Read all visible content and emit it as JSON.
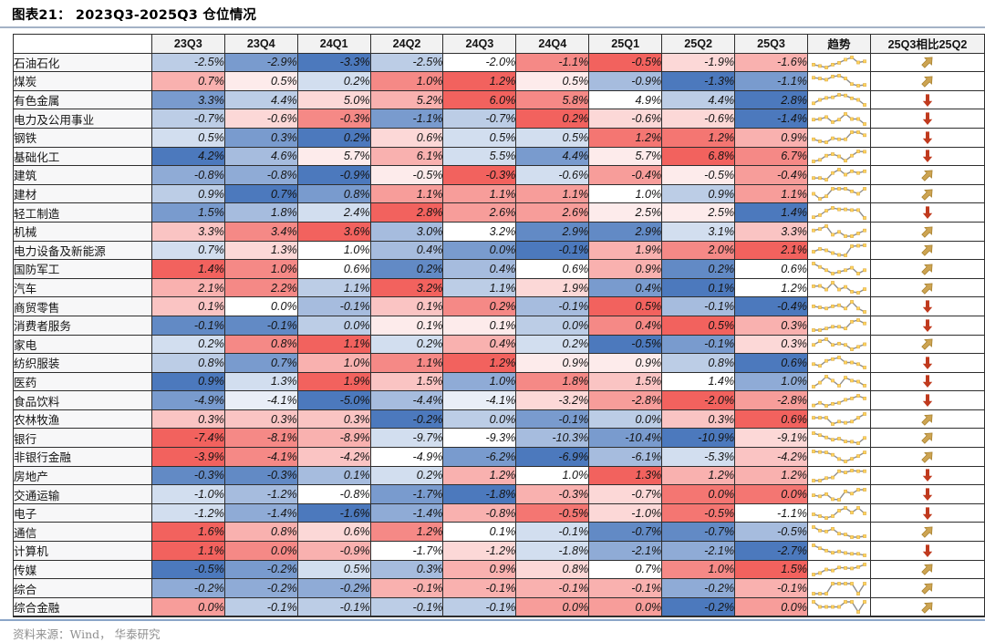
{
  "title": "图表21：  2023Q3-2025Q3 仓位情况",
  "source_note": "资料来源：Wind， 华泰研究",
  "chart_data": {
    "type": "heatmap",
    "unit": "%",
    "value_format": "one_decimal_percent",
    "color_scale": "row-wise percentile, blue (row min) → white (median) → red (row max)",
    "columns": [
      "23Q3",
      "23Q4",
      "24Q1",
      "24Q2",
      "24Q3",
      "24Q4",
      "25Q1",
      "25Q2",
      "25Q3"
    ],
    "trend_column_label": "趋势",
    "compare_column_label": "25Q3相比25Q2",
    "rows": [
      {
        "name": "石油石化",
        "values": [
          -2.5,
          -2.9,
          -3.3,
          -2.5,
          -2.0,
          -1.1,
          -0.5,
          -1.9,
          -1.6
        ],
        "change": "up"
      },
      {
        "name": "煤炭",
        "values": [
          0.7,
          0.5,
          0.2,
          1.0,
          1.2,
          0.5,
          -0.9,
          -1.3,
          -1.1
        ],
        "change": "up"
      },
      {
        "name": "有色金属",
        "values": [
          3.3,
          4.4,
          5.0,
          5.2,
          6.0,
          5.8,
          4.9,
          4.4,
          2.8
        ],
        "change": "down"
      },
      {
        "name": "电力及公用事业",
        "values": [
          -0.7,
          -0.6,
          -0.3,
          -1.1,
          -0.7,
          0.2,
          -0.6,
          -0.6,
          -1.4
        ],
        "change": "down"
      },
      {
        "name": "钢铁",
        "values": [
          0.5,
          0.3,
          0.2,
          0.6,
          0.5,
          0.5,
          1.2,
          1.2,
          0.9
        ],
        "change": "down"
      },
      {
        "name": "基础化工",
        "values": [
          4.2,
          4.6,
          5.7,
          6.1,
          5.5,
          4.4,
          5.7,
          6.8,
          6.7
        ],
        "change": "down"
      },
      {
        "name": "建筑",
        "values": [
          -0.8,
          -0.8,
          -0.9,
          -0.5,
          -0.3,
          -0.6,
          -0.4,
          -0.5,
          -0.4
        ],
        "change": "up"
      },
      {
        "name": "建材",
        "values": [
          0.9,
          0.7,
          0.8,
          1.1,
          1.1,
          1.1,
          1.0,
          0.9,
          1.1
        ],
        "change": "up"
      },
      {
        "name": "轻工制造",
        "values": [
          1.5,
          1.8,
          2.4,
          2.8,
          2.6,
          2.6,
          2.5,
          2.5,
          1.4
        ],
        "change": "down"
      },
      {
        "name": "机械",
        "values": [
          3.3,
          3.4,
          3.6,
          3.0,
          3.2,
          2.9,
          2.9,
          3.1,
          3.3
        ],
        "change": "up"
      },
      {
        "name": "电力设备及新能源",
        "values": [
          0.7,
          1.3,
          1.0,
          0.4,
          0.0,
          -0.1,
          1.9,
          2.0,
          2.1
        ],
        "change": "up"
      },
      {
        "name": "国防军工",
        "values": [
          1.4,
          1.0,
          0.6,
          0.2,
          0.4,
          0.6,
          0.9,
          0.2,
          0.6
        ],
        "change": "up"
      },
      {
        "name": "汽车",
        "values": [
          2.1,
          2.2,
          1.1,
          3.2,
          1.1,
          1.9,
          0.4,
          0.1,
          1.2
        ],
        "change": "up"
      },
      {
        "name": "商贸零售",
        "values": [
          0.1,
          0.0,
          -0.1,
          0.1,
          0.2,
          -0.1,
          0.5,
          -0.1,
          -0.4
        ],
        "change": "down"
      },
      {
        "name": "消费者服务",
        "values": [
          -0.1,
          -0.1,
          0.0,
          0.1,
          0.1,
          0.0,
          0.4,
          0.5,
          0.3
        ],
        "change": "down"
      },
      {
        "name": "家电",
        "values": [
          0.2,
          0.8,
          1.1,
          0.2,
          0.4,
          0.2,
          -0.5,
          -0.1,
          0.3
        ],
        "change": "up"
      },
      {
        "name": "纺织服装",
        "values": [
          0.8,
          0.7,
          1.0,
          1.1,
          1.2,
          0.9,
          0.9,
          0.8,
          0.6
        ],
        "change": "down"
      },
      {
        "name": "医药",
        "values": [
          0.9,
          1.3,
          1.9,
          1.5,
          1.0,
          1.8,
          1.5,
          1.4,
          1.0
        ],
        "change": "down"
      },
      {
        "name": "食品饮料",
        "values": [
          -4.9,
          -4.1,
          -5.0,
          -4.4,
          -4.1,
          -3.2,
          -2.8,
          -2.0,
          -2.8
        ],
        "change": "down"
      },
      {
        "name": "农林牧渔",
        "values": [
          0.3,
          0.3,
          0.3,
          -0.2,
          0.0,
          -0.1,
          0.0,
          0.3,
          0.6
        ],
        "change": "up"
      },
      {
        "name": "银行",
        "values": [
          -7.4,
          -8.1,
          -8.9,
          -9.7,
          -9.3,
          -10.3,
          -10.4,
          -10.9,
          -9.1
        ],
        "change": "up"
      },
      {
        "name": "非银行金融",
        "values": [
          -3.9,
          -4.1,
          -4.2,
          -4.9,
          -6.2,
          -6.9,
          -6.1,
          -5.3,
          -4.2
        ],
        "change": "up"
      },
      {
        "name": "房地产",
        "values": [
          -0.3,
          -0.3,
          0.1,
          0.2,
          1.2,
          1.0,
          1.3,
          1.2,
          1.2
        ],
        "change": "down"
      },
      {
        "name": "交通运输",
        "values": [
          -1.0,
          -1.2,
          -0.8,
          -1.7,
          -1.8,
          -0.3,
          -0.7,
          0.0,
          0.0
        ],
        "change": "down"
      },
      {
        "name": "电子",
        "values": [
          -1.2,
          -1.4,
          -1.6,
          -1.4,
          -0.8,
          -0.5,
          -1.0,
          -0.5,
          -1.1
        ],
        "change": "down"
      },
      {
        "name": "通信",
        "values": [
          1.6,
          0.8,
          0.6,
          1.2,
          0.1,
          -0.1,
          -0.7,
          -0.7,
          -0.5
        ],
        "change": "up"
      },
      {
        "name": "计算机",
        "values": [
          1.1,
          0.0,
          -0.9,
          -1.7,
          -1.2,
          -1.8,
          -2.1,
          -2.1,
          -2.7
        ],
        "change": "down"
      },
      {
        "name": "传媒",
        "values": [
          -0.5,
          -0.2,
          0.5,
          0.3,
          0.9,
          0.8,
          0.7,
          1.0,
          1.5
        ],
        "change": "up"
      },
      {
        "name": "综合",
        "values": [
          -0.2,
          -0.2,
          -0.2,
          -0.1,
          -0.1,
          -0.1,
          -0.1,
          -0.2,
          -0.1
        ],
        "change": "up"
      },
      {
        "name": "综合金融",
        "values": [
          0.0,
          -0.1,
          -0.1,
          -0.1,
          -0.1,
          0.0,
          0.0,
          -0.2,
          0.0
        ],
        "change": "up"
      }
    ]
  },
  "colors": {
    "heat_positive_max": "#f2625e",
    "heat_negative_max": "#4c79bd",
    "heat_neutral": "#ffffff",
    "up_arrow": "#cda452",
    "up_arrow_outline": "#a57e2b",
    "down_arrow": "#c03a1e",
    "spark_line": "#8e8e8e",
    "spark_marker": "#ffd45e",
    "spark_marker_edge": "#d8a43c",
    "header_bg": "#f2f2f2",
    "label_bg": "#f7f7f8",
    "border": "#2e2e2e",
    "top_rule": "#a4b2c6",
    "bottom_rule": "#8ba5c8",
    "source_text": "#8f8f8f"
  }
}
